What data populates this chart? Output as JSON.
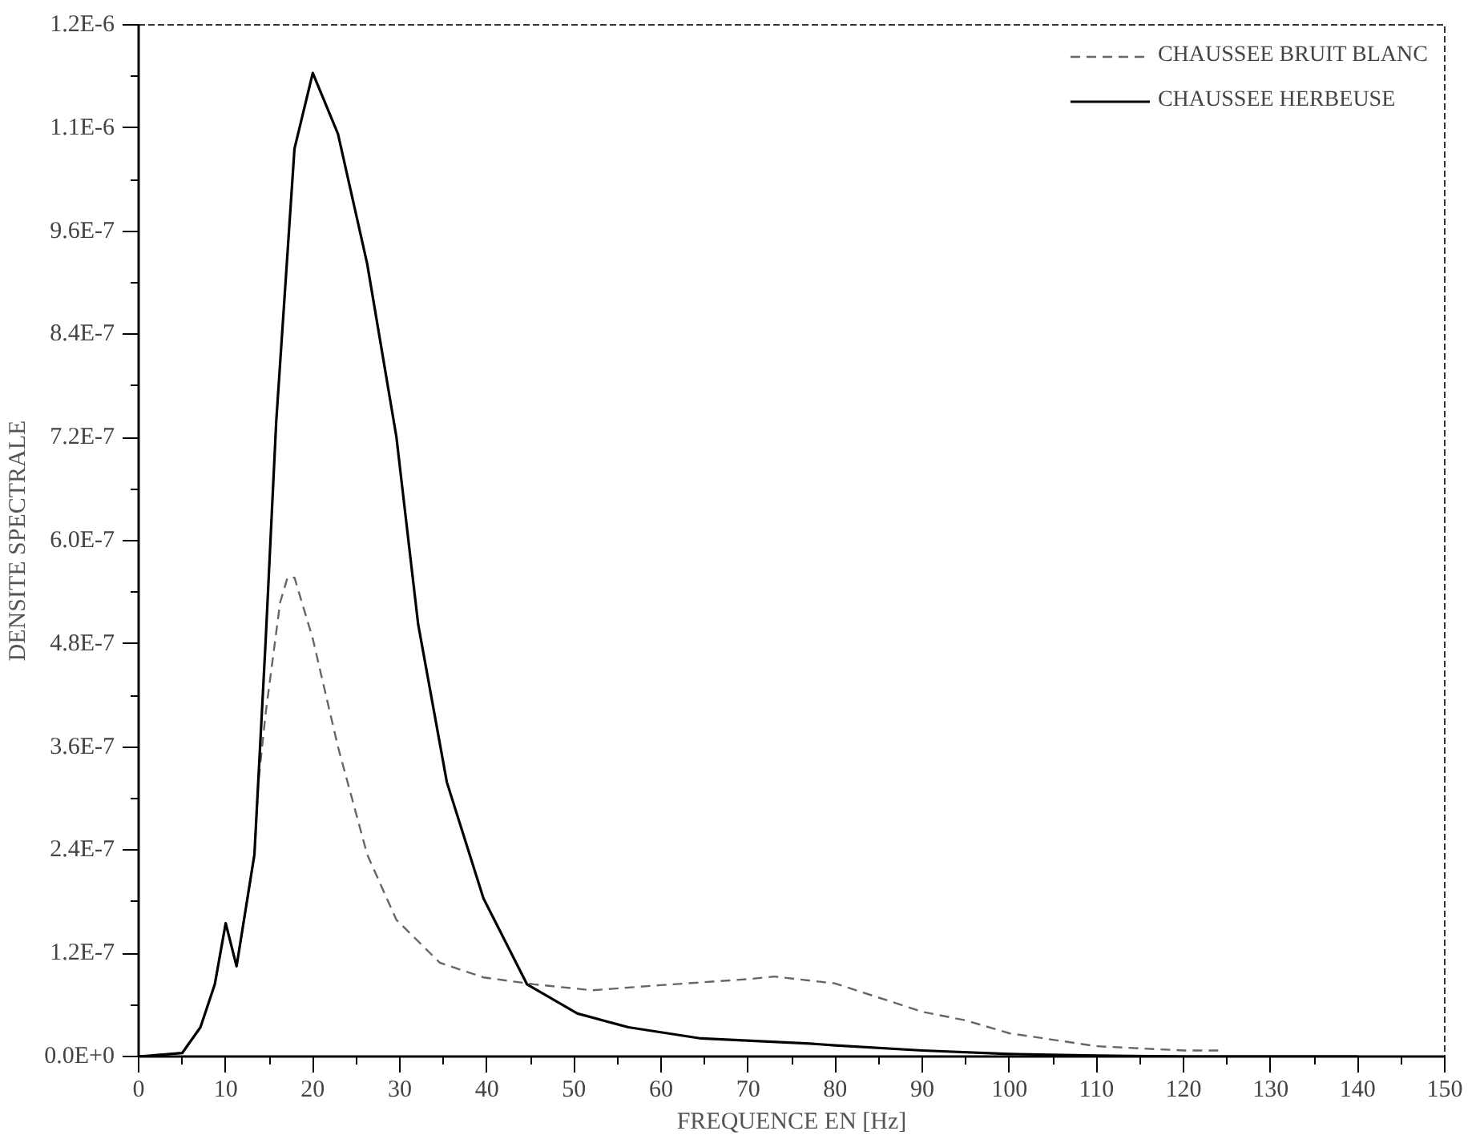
{
  "chart_data": {
    "type": "line",
    "xlabel": "FREQUENCE EN [Hz]",
    "ylabel": "DENSITE SPECTRALE",
    "xlim": [
      0,
      150
    ],
    "ylim": [
      0,
      1.2e-06
    ],
    "xticks": [
      0,
      {
        "value": 5,
        "label": null
      },
      10,
      {
        "value": 15,
        "label": null
      },
      20,
      {
        "value": 25,
        "label": null
      },
      30,
      {
        "value": 35,
        "label": null
      },
      40,
      {
        "value": 45,
        "label": null
      },
      50,
      {
        "value": 55,
        "label": null
      },
      60,
      {
        "value": 65,
        "label": null
      },
      70,
      {
        "value": 75,
        "label": null
      },
      80,
      {
        "value": 85,
        "label": null
      },
      90,
      {
        "value": 95,
        "label": null
      },
      100,
      {
        "value": 105,
        "label": null
      },
      110,
      {
        "value": 115,
        "label": null
      },
      120,
      {
        "value": 125,
        "label": null
      },
      130,
      {
        "value": 135,
        "label": null
      },
      140,
      {
        "value": 145,
        "label": null
      },
      150
    ],
    "yticks": [
      {
        "value": 0,
        "label": "0.0E+0"
      },
      {
        "value": 6e-08,
        "label": null
      },
      {
        "value": 1.2e-07,
        "label": "1.2E-7"
      },
      {
        "value": 1.8e-07,
        "label": null
      },
      {
        "value": 2.4e-07,
        "label": "2.4E-7"
      },
      {
        "value": 3e-07,
        "label": null
      },
      {
        "value": 3.6e-07,
        "label": "3.6E-7"
      },
      {
        "value": 4.2e-07,
        "label": null
      },
      {
        "value": 4.8e-07,
        "label": "4.8E-7"
      },
      {
        "value": 5.4e-07,
        "label": null
      },
      {
        "value": 6e-07,
        "label": "6.0E-7"
      },
      {
        "value": 6.6e-07,
        "label": null
      },
      {
        "value": 7.2e-07,
        "label": "7.2E-7"
      },
      {
        "value": 7.8e-07,
        "label": null
      },
      {
        "value": 8.4e-07,
        "label": "8.4E-7"
      },
      {
        "value": 9e-07,
        "label": null
      },
      {
        "value": 9.6e-07,
        "label": "9.6E-7"
      },
      {
        "value": 1.02e-06,
        "label": null
      },
      {
        "value": 1.08e-06,
        "label": "1.1E-6"
      },
      {
        "value": 1.14e-06,
        "label": null
      },
      {
        "value": 1.2e-06,
        "label": "1.2E-6"
      }
    ],
    "grid": false,
    "legend": "top right",
    "marker": "none",
    "series": [
      {
        "name": "CHAUSSEE BRUIT BLANC",
        "color": "#666666",
        "line_style": "dashed",
        "x": [
          0,
          5,
          7.1,
          8.75,
          10,
          11.25,
          13.3,
          13.75,
          14.6,
          16.25,
          17.1,
          17.9,
          20,
          22.9,
          26.25,
          29.6,
          34.6,
          39.6,
          45.4,
          52.1,
          60,
          70,
          73,
          80,
          90,
          95,
          100,
          110,
          120,
          124
        ],
        "values": [
          0,
          4e-09,
          3.4e-08,
          8.4e-08,
          1.55e-07,
          1.05e-07,
          2.35e-07,
          3.19e-07,
          4e-07,
          5.28e-07,
          5.57e-07,
          5.57e-07,
          4.86e-07,
          3.6e-07,
          2.35e-07,
          1.59e-07,
          1.09e-07,
          9.2e-08,
          8.4e-08,
          7.7e-08,
          8.3e-08,
          9e-08,
          9.3e-08,
          8.5e-08,
          5.2e-08,
          4.2e-08,
          2.7e-08,
          1.2e-08,
          7e-09,
          7e-09
        ]
      },
      {
        "name": "CHAUSSEE HERBEUSE",
        "color": "#000000",
        "line_style": "solid",
        "x": [
          0,
          5,
          7.1,
          8.75,
          10,
          11.25,
          13.3,
          14.6,
          15.8,
          17.9,
          20,
          22.9,
          26.25,
          29.6,
          32.1,
          35.4,
          39.6,
          44.6,
          50.4,
          56.25,
          64.6,
          77.1,
          80,
          90,
          100,
          110,
          120,
          140
        ],
        "values": [
          0,
          4e-09,
          3.4e-08,
          8.4e-08,
          1.55e-07,
          1.05e-07,
          2.35e-07,
          4.86e-07,
          7.38e-07,
          1.056e-06,
          1.144e-06,
          1.073e-06,
          9.22e-07,
          7.21e-07,
          5.03e-07,
          3.19e-07,
          1.84e-07,
          8.4e-08,
          5e-08,
          3.4e-08,
          2.1e-08,
          1.5e-08,
          1.3e-08,
          7e-09,
          3e-09,
          1e-09,
          0,
          0
        ]
      }
    ]
  }
}
